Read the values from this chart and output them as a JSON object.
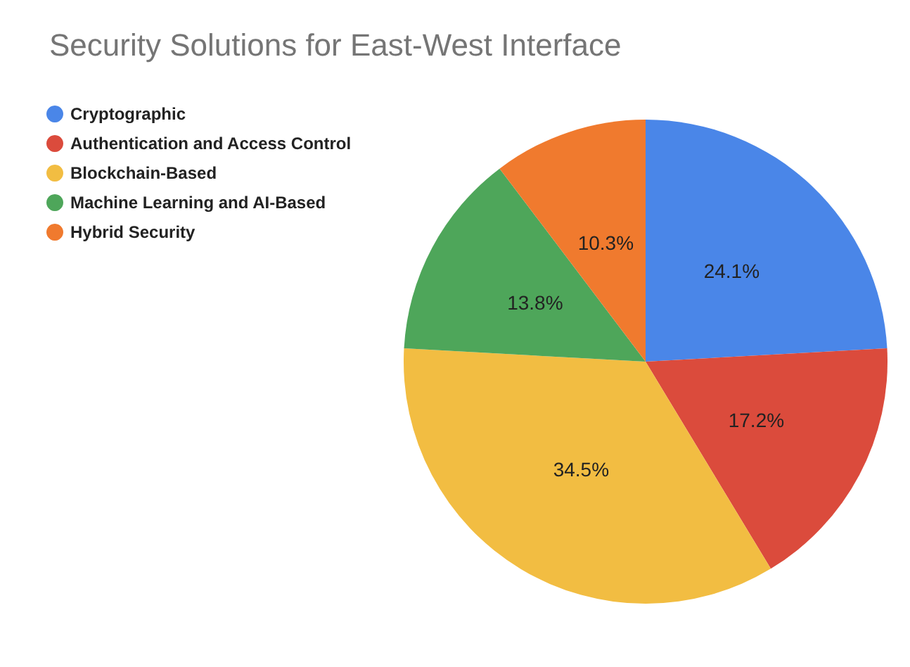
{
  "chart_data": {
    "type": "pie",
    "title": "Security Solutions for East-West Interface",
    "categories": [
      "Cryptographic",
      "Authentication and Access Control",
      "Blockchain-Based",
      "Machine Learning and AI-Based",
      "Hybrid Security"
    ],
    "values": [
      24.1,
      17.2,
      34.5,
      13.8,
      10.3
    ],
    "value_labels": [
      "24.1%",
      "17.2%",
      "34.5%",
      "13.8%",
      "10.3%"
    ],
    "colors": [
      "#4a86e8",
      "#db4b3c",
      "#f2bd42",
      "#4ea65a",
      "#f07a2e"
    ],
    "legend": "top left"
  }
}
